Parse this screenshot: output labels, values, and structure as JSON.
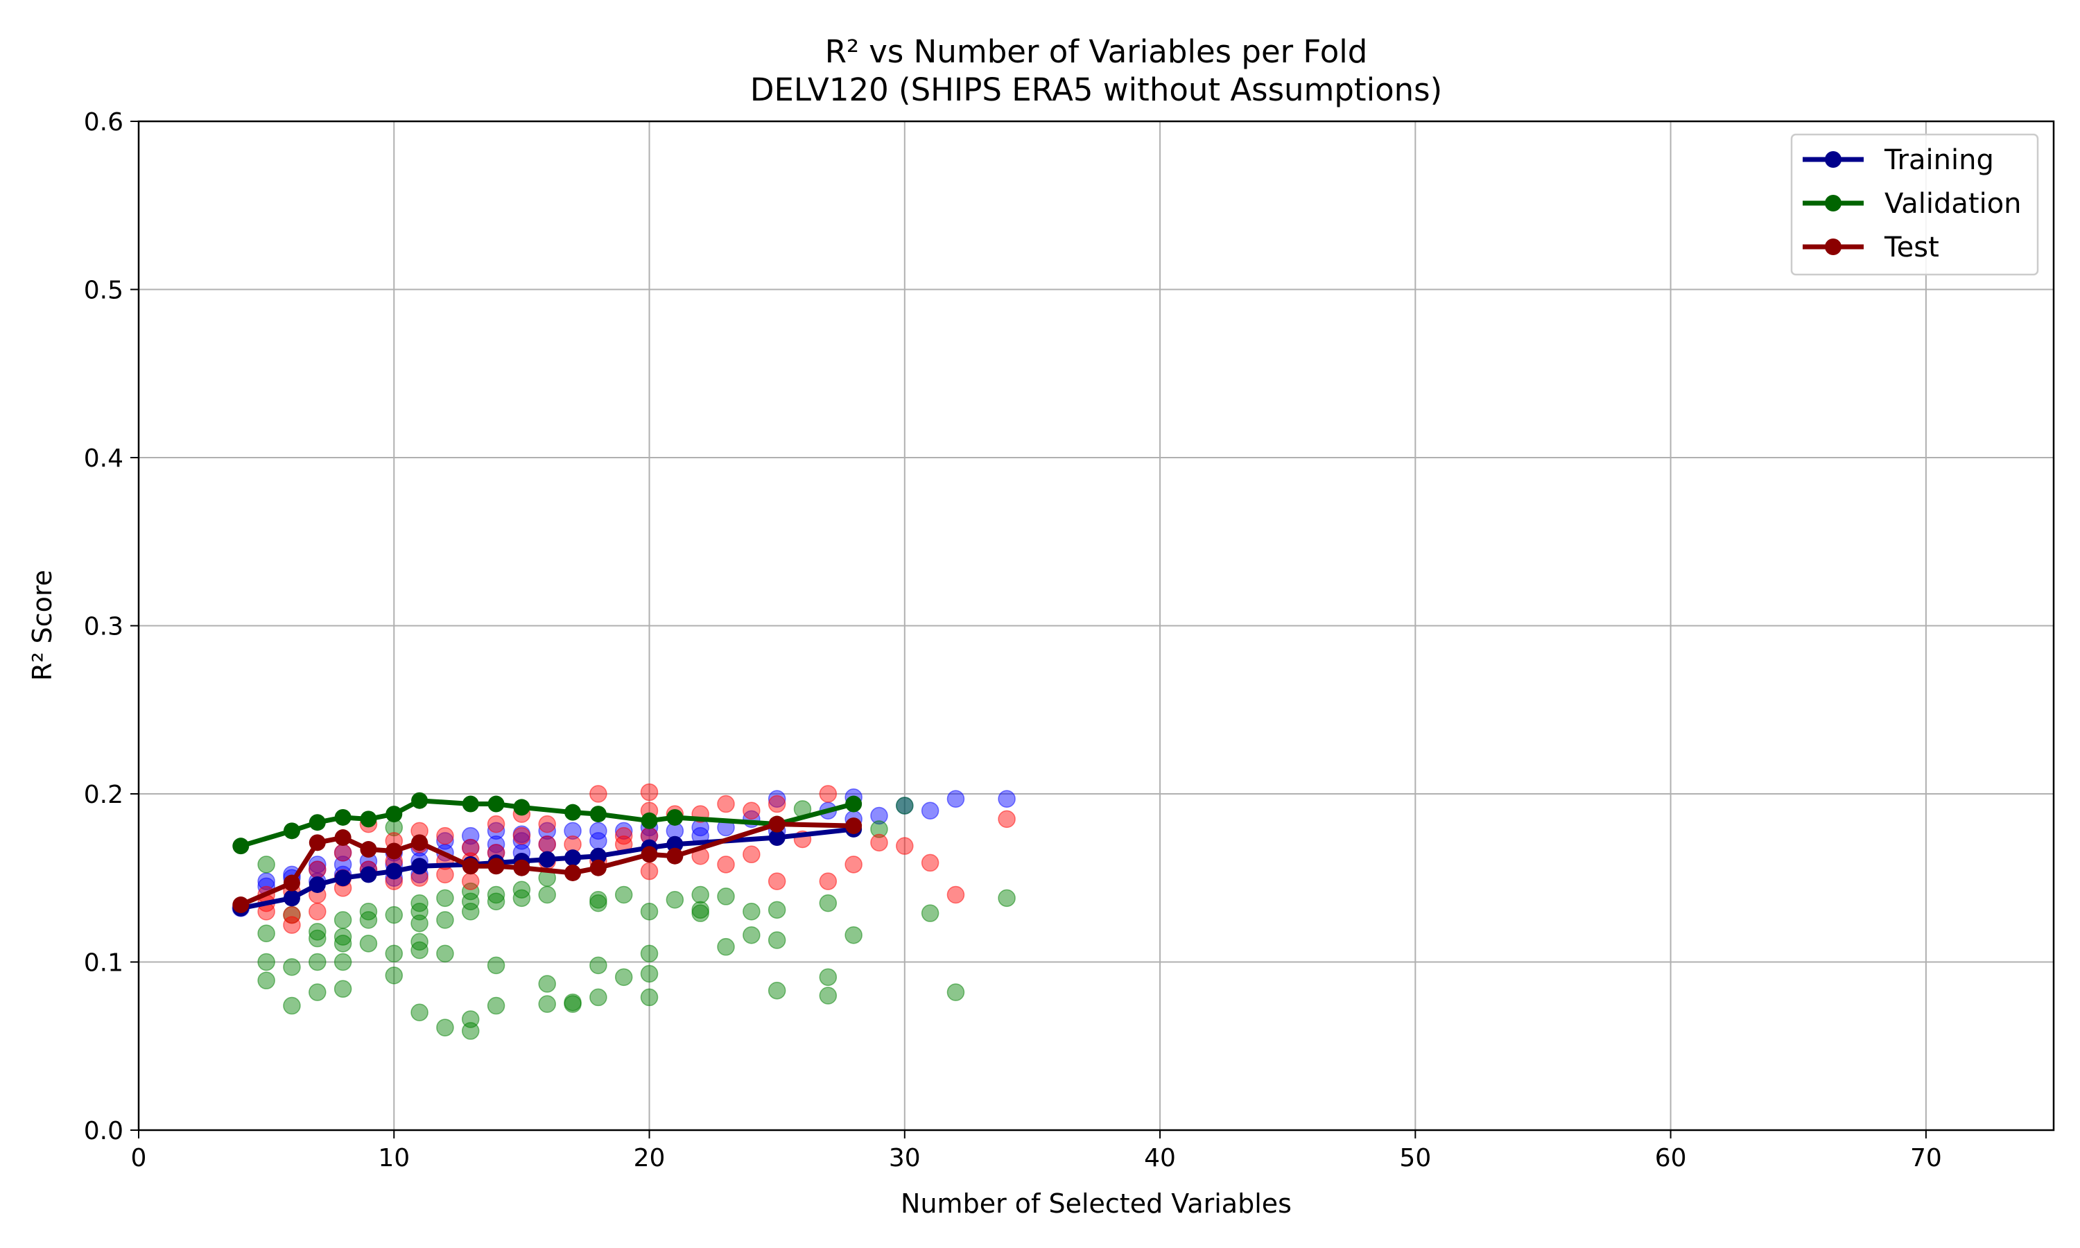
{
  "chart_data": {
    "type": "scatter",
    "title": "R² vs Number of Variables per Fold",
    "subtitle": "DELV120 (SHIPS ERA5 without Assumptions)",
    "xlabel": "Number of Selected Variables",
    "ylabel": "R² Score",
    "xlim": [
      0,
      75
    ],
    "ylim": [
      0.0,
      0.6
    ],
    "xticks": [
      0,
      10,
      20,
      30,
      40,
      50,
      60,
      70
    ],
    "yticks": [
      0.0,
      0.1,
      0.2,
      0.3,
      0.4,
      0.5,
      0.6
    ],
    "xtick_labels": [
      "0",
      "10",
      "20",
      "30",
      "40",
      "50",
      "60",
      "70"
    ],
    "ytick_labels": [
      "0.0",
      "0.1",
      "0.2",
      "0.3",
      "0.4",
      "0.5",
      "0.6"
    ],
    "grid": true,
    "legend_position": "top-right",
    "colors": {
      "training_line": "#00008b",
      "validation_line": "#006400",
      "test_line": "#8b0000",
      "training_points": "#0000ff",
      "validation_points": "#008000",
      "test_points": "#ff0000"
    },
    "series": [
      {
        "name": "Training",
        "kind": "mean-line",
        "x": [
          4,
          6,
          7,
          8,
          9,
          10,
          11,
          13,
          14,
          15,
          16,
          17,
          18,
          20,
          21,
          25,
          28
        ],
        "y": [
          0.132,
          0.138,
          0.146,
          0.15,
          0.152,
          0.154,
          0.157,
          0.158,
          0.159,
          0.16,
          0.161,
          0.162,
          0.163,
          0.168,
          0.17,
          0.174,
          0.179
        ]
      },
      {
        "name": "Validation",
        "kind": "mean-line",
        "x": [
          4,
          6,
          7,
          8,
          9,
          10,
          11,
          13,
          14,
          15,
          17,
          18,
          20,
          21,
          25,
          28
        ],
        "y": [
          0.169,
          0.178,
          0.183,
          0.186,
          0.185,
          0.188,
          0.196,
          0.194,
          0.194,
          0.192,
          0.189,
          0.188,
          0.184,
          0.186,
          0.182,
          0.194
        ]
      },
      {
        "name": "Test",
        "kind": "mean-line",
        "x": [
          4,
          6,
          7,
          8,
          9,
          10,
          11,
          13,
          14,
          15,
          17,
          18,
          20,
          21,
          25,
          28
        ],
        "y": [
          0.134,
          0.147,
          0.171,
          0.174,
          0.167,
          0.166,
          0.171,
          0.157,
          0.157,
          0.156,
          0.153,
          0.156,
          0.164,
          0.163,
          0.182,
          0.181
        ]
      },
      {
        "kind": "fold-points",
        "x": [
          4,
          5,
          5,
          6,
          6,
          7,
          7,
          7,
          8,
          8,
          8,
          9,
          9,
          10,
          10,
          10,
          11,
          11,
          11,
          12,
          12,
          13,
          13,
          14,
          14,
          14,
          15,
          15,
          15,
          16,
          16,
          17,
          18,
          18,
          19,
          20,
          20,
          21,
          22,
          22,
          23,
          24,
          25,
          25,
          27,
          28,
          28,
          29,
          30,
          31,
          32,
          34
        ],
        "y": [
          0.132,
          0.145,
          0.148,
          0.15,
          0.152,
          0.148,
          0.155,
          0.158,
          0.152,
          0.158,
          0.165,
          0.155,
          0.16,
          0.15,
          0.158,
          0.165,
          0.152,
          0.16,
          0.168,
          0.165,
          0.172,
          0.168,
          0.175,
          0.165,
          0.17,
          0.178,
          0.165,
          0.172,
          0.176,
          0.17,
          0.178,
          0.178,
          0.172,
          0.178,
          0.178,
          0.175,
          0.18,
          0.178,
          0.175,
          0.18,
          0.18,
          0.185,
          0.178,
          0.197,
          0.19,
          0.185,
          0.198,
          0.187,
          0.193,
          0.19,
          0.197,
          0.197
        ]
      },
      {
        "kind": "fold-points",
        "x": [
          5,
          5,
          5,
          5,
          6,
          6,
          6,
          7,
          7,
          7,
          7,
          8,
          8,
          8,
          8,
          8,
          9,
          9,
          9,
          10,
          10,
          10,
          10,
          11,
          11,
          11,
          11,
          11,
          11,
          12,
          12,
          12,
          12,
          13,
          13,
          13,
          13,
          13,
          14,
          14,
          14,
          14,
          15,
          15,
          16,
          16,
          16,
          16,
          17,
          17,
          18,
          18,
          18,
          18,
          19,
          19,
          20,
          20,
          20,
          20,
          21,
          22,
          22,
          22,
          23,
          23,
          24,
          24,
          25,
          25,
          25,
          26,
          27,
          27,
          27,
          28,
          29,
          30,
          31,
          32,
          34
        ],
        "y": [
          0.158,
          0.117,
          0.1,
          0.089,
          0.128,
          0.097,
          0.074,
          0.118,
          0.1,
          0.082,
          0.114,
          0.125,
          0.115,
          0.1,
          0.084,
          0.111,
          0.13,
          0.125,
          0.111,
          0.128,
          0.105,
          0.092,
          0.18,
          0.135,
          0.123,
          0.112,
          0.107,
          0.07,
          0.13,
          0.138,
          0.125,
          0.105,
          0.061,
          0.142,
          0.136,
          0.13,
          0.066,
          0.059,
          0.14,
          0.136,
          0.098,
          0.074,
          0.143,
          0.138,
          0.15,
          0.14,
          0.087,
          0.075,
          0.075,
          0.076,
          0.137,
          0.135,
          0.098,
          0.079,
          0.14,
          0.091,
          0.13,
          0.105,
          0.093,
          0.079,
          0.137,
          0.14,
          0.131,
          0.129,
          0.139,
          0.109,
          0.13,
          0.116,
          0.131,
          0.113,
          0.083,
          0.191,
          0.135,
          0.091,
          0.08,
          0.116,
          0.179,
          0.193,
          0.129,
          0.082,
          0.138
        ]
      },
      {
        "kind": "fold-points",
        "x": [
          5,
          5,
          5,
          6,
          6,
          6,
          7,
          7,
          7,
          8,
          8,
          8,
          9,
          9,
          10,
          10,
          10,
          11,
          11,
          11,
          12,
          12,
          12,
          13,
          13,
          13,
          14,
          14,
          15,
          15,
          16,
          16,
          16,
          17,
          18,
          18,
          19,
          19,
          20,
          20,
          20,
          20,
          21,
          22,
          22,
          23,
          23,
          24,
          24,
          25,
          25,
          26,
          27,
          27,
          28,
          29,
          30,
          31,
          32,
          34
        ],
        "y": [
          0.13,
          0.14,
          0.135,
          0.128,
          0.122,
          0.142,
          0.13,
          0.14,
          0.155,
          0.144,
          0.15,
          0.165,
          0.155,
          0.182,
          0.148,
          0.16,
          0.172,
          0.15,
          0.17,
          0.178,
          0.152,
          0.16,
          0.175,
          0.148,
          0.16,
          0.168,
          0.165,
          0.182,
          0.175,
          0.188,
          0.16,
          0.17,
          0.182,
          0.17,
          0.16,
          0.2,
          0.17,
          0.175,
          0.154,
          0.175,
          0.19,
          0.201,
          0.188,
          0.163,
          0.188,
          0.158,
          0.194,
          0.164,
          0.19,
          0.148,
          0.194,
          0.173,
          0.148,
          0.2,
          0.158,
          0.171,
          0.169,
          0.159,
          0.14,
          0.185
        ]
      }
    ]
  }
}
